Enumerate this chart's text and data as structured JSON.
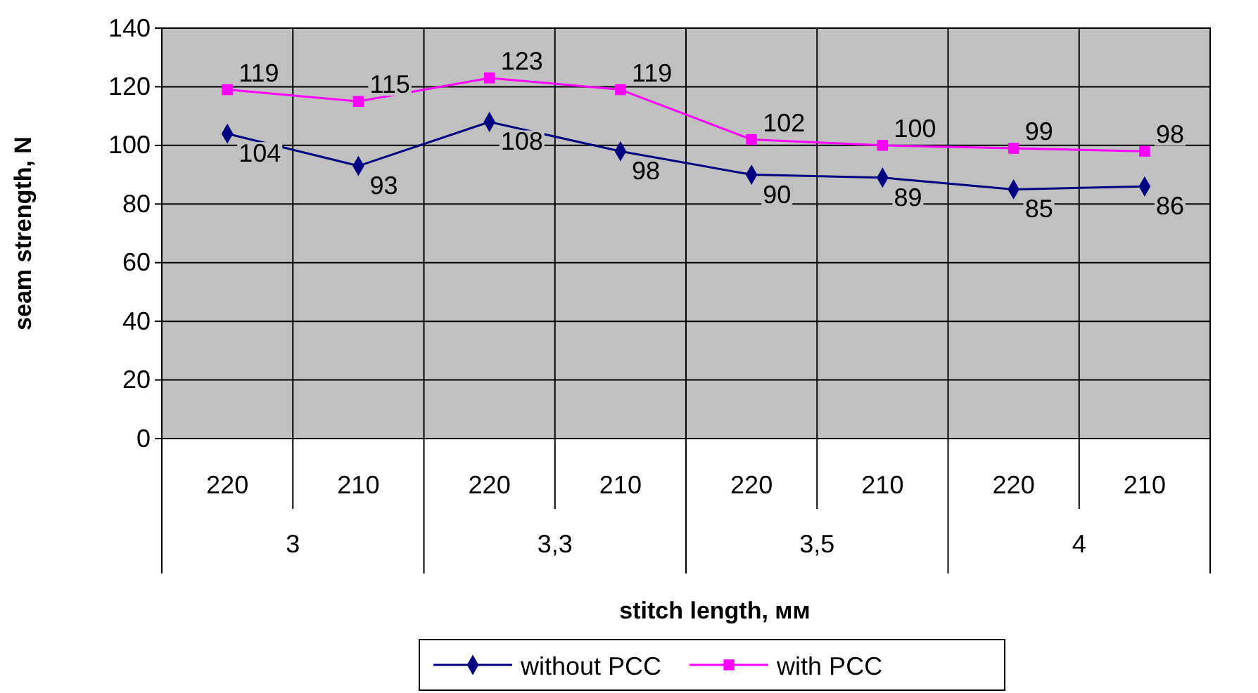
{
  "chart_data": {
    "type": "line",
    "xlabel": "stitch length, мм",
    "ylabel": "seam strength, N",
    "categories": [
      "220",
      "210",
      "220",
      "210",
      "220",
      "210",
      "220",
      "210"
    ],
    "annotations": [
      "3",
      "3,3",
      "3,5",
      "4"
    ],
    "series": [
      {
        "name": "without PCC",
        "color": "#000080",
        "marker": "diamond",
        "values": [
          104,
          93,
          108,
          98,
          90,
          89,
          85,
          86
        ]
      },
      {
        "name": "with PCC",
        "color": "#ff00ff",
        "marker": "square",
        "values": [
          119,
          115,
          123,
          119,
          102,
          100,
          99,
          98
        ]
      }
    ],
    "ylim": [
      0,
      140
    ],
    "yticks": [
      0,
      20,
      40,
      60,
      80,
      100,
      120,
      140
    ],
    "grid": true,
    "data_labels": true,
    "legend": "bottom",
    "line_style": "solid"
  }
}
